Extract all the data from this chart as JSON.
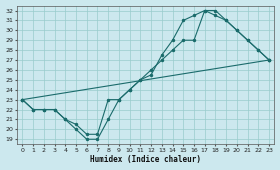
{
  "xlabel": "Humidex (Indice chaleur)",
  "xlim": [
    -0.5,
    23.5
  ],
  "ylim": [
    18.5,
    32.5
  ],
  "yticks": [
    19,
    20,
    21,
    22,
    23,
    24,
    25,
    26,
    27,
    28,
    29,
    30,
    31,
    32
  ],
  "xticks": [
    0,
    1,
    2,
    3,
    4,
    5,
    6,
    7,
    8,
    9,
    10,
    11,
    12,
    13,
    14,
    15,
    16,
    17,
    18,
    19,
    20,
    21,
    22,
    23
  ],
  "background_color": "#cce8ee",
  "grid_color": "#99cccc",
  "line_color": "#1a6b6b",
  "line1_x": [
    0,
    1,
    2,
    3,
    4,
    5,
    6,
    7,
    8,
    9,
    10,
    11,
    12,
    13,
    14,
    15,
    16,
    17,
    18,
    19,
    20,
    21,
    22,
    23
  ],
  "line1_y": [
    23,
    22,
    22,
    22,
    21,
    20,
    19,
    19,
    21,
    23,
    24,
    25,
    26,
    27,
    28,
    29,
    29,
    32,
    32,
    31,
    30,
    29,
    28,
    27
  ],
  "line2_x": [
    0,
    1,
    2,
    3,
    4,
    5,
    6,
    7,
    8,
    9,
    10,
    11,
    12,
    13,
    14,
    15,
    16,
    17,
    18,
    19,
    20,
    21,
    22,
    23
  ],
  "line2_y": [
    23,
    22,
    22,
    22,
    21,
    20.5,
    19.5,
    19.5,
    23,
    23,
    24,
    25,
    25.5,
    27.5,
    29,
    31,
    31.5,
    32,
    31.5,
    31,
    30,
    29,
    28,
    27
  ],
  "line3_x": [
    0,
    23
  ],
  "line3_y": [
    23,
    27
  ],
  "marker": "o",
  "markersize": 2.5,
  "linewidth": 0.8
}
